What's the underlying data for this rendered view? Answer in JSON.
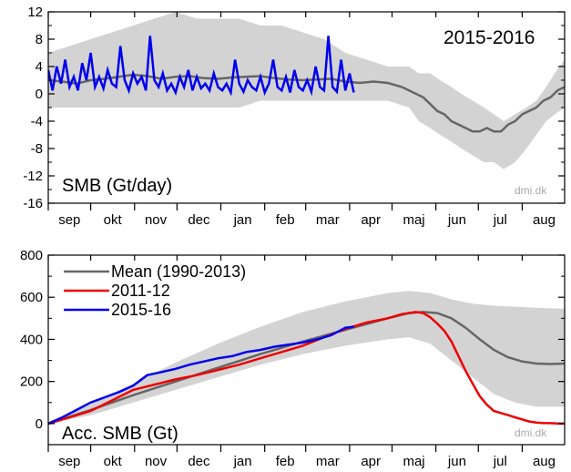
{
  "chart_data": [
    {
      "type": "line",
      "panel": "daily",
      "season_label": "2015-2016",
      "ylabel_in_plot": "SMB (Gt/day)",
      "credit": "dmi.dk",
      "ylim": [
        -16,
        12
      ],
      "y_ticks": [
        12,
        8,
        4,
        0,
        -4,
        -8,
        -12,
        -16
      ],
      "y_minor_ticks": [
        10,
        6,
        2,
        -2,
        -6,
        -10,
        -14
      ],
      "x_unit": "days since 1 Sep",
      "xlim": [
        0,
        365
      ],
      "months": [
        "sep",
        "okt",
        "nov",
        "dec",
        "jan",
        "feb",
        "mar",
        "apr",
        "maj",
        "jun",
        "jul",
        "aug"
      ],
      "colors": {
        "mean": "#666666",
        "band": "#d3d3d3",
        "current": "#0000ee"
      },
      "band": {
        "x": [
          0,
          15,
          30,
          45,
          60,
          75,
          90,
          105,
          120,
          135,
          150,
          165,
          180,
          195,
          210,
          225,
          240,
          255,
          262,
          270,
          277,
          285,
          292,
          300,
          308,
          315,
          322,
          330,
          338,
          345,
          352,
          358,
          365
        ],
        "upper": [
          6,
          7,
          8,
          9,
          10,
          11,
          12,
          11,
          11,
          11,
          10,
          10,
          9,
          8,
          6,
          5,
          4,
          4,
          3,
          3,
          2,
          1,
          0,
          -1,
          -2,
          -3,
          -4,
          -3,
          -2,
          -1,
          1,
          3,
          5
        ],
        "lower": [
          -2,
          -2,
          -2,
          -2,
          -2,
          -2,
          -2,
          -2,
          -2,
          -2,
          -1,
          -1,
          -1,
          -1,
          -1,
          -1,
          -1,
          -2,
          -4,
          -5,
          -6,
          -7,
          -8,
          -9,
          -10,
          -10,
          -11,
          -10,
          -8,
          -6,
          -4,
          -3,
          -2
        ]
      },
      "series": [
        {
          "name": "mean",
          "x": [
            0,
            10,
            20,
            30,
            40,
            50,
            60,
            70,
            80,
            90,
            100,
            110,
            120,
            130,
            140,
            150,
            160,
            170,
            180,
            190,
            200,
            210,
            220,
            230,
            240,
            250,
            255,
            260,
            265,
            270,
            275,
            280,
            285,
            290,
            295,
            300,
            305,
            310,
            315,
            320,
            325,
            330,
            335,
            340,
            345,
            350,
            355,
            360,
            365
          ],
          "y": [
            2,
            1.8,
            1.5,
            2,
            2.2,
            2.5,
            2.8,
            2.6,
            2.2,
            2.5,
            2.6,
            2.3,
            2.2,
            2.4,
            2.5,
            2.6,
            2.3,
            2.1,
            2,
            2.1,
            2.2,
            1.8,
            1.6,
            1.8,
            1.6,
            1,
            0.5,
            0,
            -0.5,
            -1.5,
            -2.5,
            -3,
            -4,
            -4.5,
            -5,
            -5.5,
            -5.5,
            -5,
            -5.5,
            -5.5,
            -4.5,
            -4,
            -3,
            -2.5,
            -2,
            -1,
            -0.5,
            0.5,
            1
          ]
        },
        {
          "name": "2015-16",
          "x": [
            0,
            3,
            6,
            9,
            12,
            15,
            18,
            21,
            24,
            27,
            30,
            33,
            36,
            39,
            42,
            45,
            48,
            51,
            54,
            57,
            60,
            63,
            66,
            69,
            72,
            75,
            78,
            81,
            84,
            87,
            90,
            93,
            96,
            99,
            102,
            105,
            108,
            111,
            114,
            117,
            120,
            123,
            126,
            129,
            132,
            135,
            138,
            141,
            144,
            147,
            150,
            153,
            156,
            159,
            162,
            165,
            168,
            171,
            174,
            177,
            180,
            183,
            186,
            189,
            192,
            195,
            198,
            201,
            204,
            207,
            210,
            213,
            216
          ],
          "y": [
            3.5,
            0.5,
            4,
            1.5,
            5,
            1,
            2.5,
            0.5,
            4.5,
            2,
            6,
            1,
            2.5,
            0.8,
            3.5,
            1.5,
            1,
            7,
            2,
            0.5,
            3,
            1.5,
            2.5,
            0.5,
            8.5,
            2,
            1,
            3,
            0.5,
            1.5,
            0.2,
            2.5,
            1,
            3.5,
            0.5,
            2.5,
            0.8,
            1.5,
            0.5,
            3,
            1,
            0.5,
            1.5,
            0.2,
            5,
            1.5,
            0.3,
            2,
            1,
            0.5,
            2.5,
            0.2,
            1.5,
            5,
            1,
            0.5,
            2.5,
            0.2,
            3.5,
            1,
            0.5,
            2,
            0.3,
            4,
            1,
            0.5,
            8.5,
            1,
            0.3,
            5,
            0.5,
            3,
            0.2
          ]
        }
      ]
    },
    {
      "type": "line",
      "panel": "accumulated",
      "ylabel_in_plot": "Acc. SMB (Gt)",
      "credit": "dmi.dk",
      "ylim": [
        -100,
        800
      ],
      "y_ticks": [
        800,
        600,
        400,
        200,
        0
      ],
      "y_minor_ticks": [
        700,
        500,
        300,
        100,
        -100
      ],
      "x_unit": "days since 1 Sep",
      "xlim": [
        0,
        365
      ],
      "months": [
        "sep",
        "okt",
        "nov",
        "dec",
        "jan",
        "feb",
        "mar",
        "apr",
        "maj",
        "jun",
        "jul",
        "aug"
      ],
      "legend": [
        "Mean (1990-2013)",
        "2011-12",
        "2015-16"
      ],
      "colors": {
        "mean": "#666666",
        "band": "#d3d3d3",
        "2011-12": "#ee0000",
        "2015-16": "#0000ee"
      },
      "band": {
        "x": [
          0,
          30,
          60,
          90,
          120,
          150,
          180,
          210,
          240,
          255,
          270,
          285,
          300,
          315,
          330,
          345,
          365
        ],
        "upper": [
          0,
          90,
          190,
          290,
          380,
          460,
          530,
          580,
          620,
          630,
          620,
          590,
          570,
          560,
          555,
          550,
          545
        ],
        "lower": [
          0,
          40,
          100,
          160,
          220,
          280,
          330,
          370,
          400,
          410,
          380,
          300,
          220,
          140,
          100,
          80,
          80
        ]
      },
      "series": [
        {
          "name": "Mean (1990-2013)",
          "x": [
            0,
            30,
            60,
            90,
            120,
            150,
            180,
            210,
            240,
            255,
            265,
            275,
            285,
            295,
            305,
            315,
            325,
            335,
            345,
            355,
            365
          ],
          "y": [
            0,
            65,
            135,
            200,
            265,
            330,
            390,
            445,
            500,
            525,
            530,
            525,
            500,
            455,
            400,
            350,
            315,
            295,
            285,
            283,
            285
          ]
        },
        {
          "name": "2011-12",
          "x": [
            0,
            15,
            30,
            45,
            60,
            75,
            90,
            105,
            120,
            135,
            150,
            165,
            180,
            195,
            210,
            225,
            240,
            250,
            260,
            265,
            270,
            275,
            280,
            285,
            290,
            295,
            300,
            305,
            310,
            315,
            320,
            325,
            330,
            335,
            340,
            345,
            350,
            355,
            360,
            365
          ],
          "y": [
            0,
            30,
            60,
            110,
            160,
            185,
            210,
            230,
            255,
            280,
            310,
            340,
            370,
            410,
            450,
            480,
            500,
            520,
            530,
            525,
            505,
            475,
            440,
            390,
            320,
            250,
            190,
            130,
            90,
            60,
            50,
            40,
            30,
            20,
            10,
            5,
            3,
            2,
            1,
            0
          ]
        },
        {
          "name": "2015-16",
          "x": [
            0,
            10,
            20,
            30,
            40,
            50,
            60,
            70,
            80,
            90,
            100,
            110,
            120,
            130,
            140,
            150,
            160,
            170,
            180,
            190,
            200,
            210,
            216
          ],
          "y": [
            0,
            30,
            65,
            100,
            125,
            150,
            180,
            230,
            245,
            260,
            280,
            295,
            310,
            320,
            340,
            350,
            365,
            375,
            385,
            400,
            420,
            455,
            460
          ]
        }
      ]
    }
  ]
}
